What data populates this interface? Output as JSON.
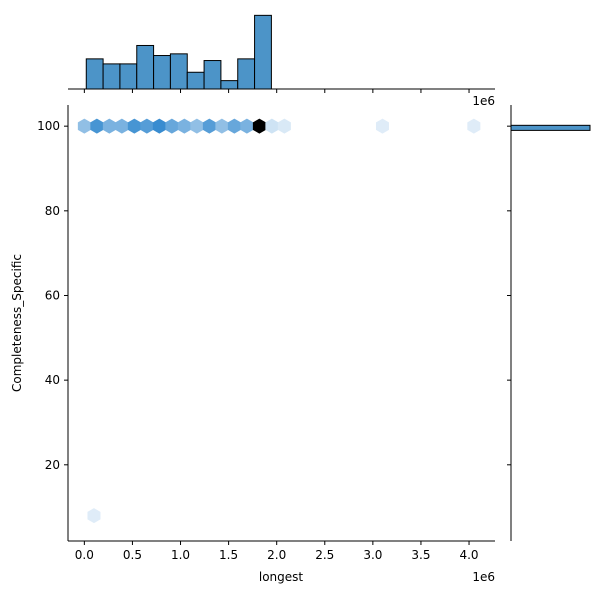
{
  "chart_data": {
    "type": "hexbin_joint",
    "xlabel": "longest",
    "ylabel": "Completeness_Specific",
    "x_offset_label": "1e6",
    "top_offset_label": "1e6",
    "xlim": [
      -170000,
      4270000
    ],
    "ylim": [
      2,
      105
    ],
    "x_ticks": [
      0,
      500000,
      1000000,
      1500000,
      2000000,
      2500000,
      3000000,
      3500000,
      4000000
    ],
    "x_tick_labels": [
      "0.0",
      "0.5",
      "1.0",
      "1.5",
      "2.0",
      "2.5",
      "3.0",
      "3.5",
      "4.0"
    ],
    "y_ticks": [
      20,
      40,
      60,
      80,
      100
    ],
    "y_tick_labels": [
      "20",
      "40",
      "60",
      "80",
      "100"
    ],
    "hexbins": [
      {
        "x": 0,
        "y": 100,
        "count": 2
      },
      {
        "x": 130000,
        "y": 100,
        "count": 6
      },
      {
        "x": 260000,
        "y": 100,
        "count": 3
      },
      {
        "x": 390000,
        "y": 100,
        "count": 3
      },
      {
        "x": 520000,
        "y": 100,
        "count": 6
      },
      {
        "x": 650000,
        "y": 100,
        "count": 5
      },
      {
        "x": 780000,
        "y": 100,
        "count": 7
      },
      {
        "x": 910000,
        "y": 100,
        "count": 4
      },
      {
        "x": 1040000,
        "y": 100,
        "count": 3
      },
      {
        "x": 1170000,
        "y": 100,
        "count": 2
      },
      {
        "x": 1300000,
        "y": 100,
        "count": 5
      },
      {
        "x": 1430000,
        "y": 100,
        "count": 2
      },
      {
        "x": 1560000,
        "y": 100,
        "count": 4
      },
      {
        "x": 1690000,
        "y": 100,
        "count": 3
      },
      {
        "x": 1820000,
        "y": 100,
        "count": 14
      },
      {
        "x": 1950000,
        "y": 100,
        "count": 0.3
      },
      {
        "x": 2080000,
        "y": 100,
        "count": 0.15
      },
      {
        "x": 3100000,
        "y": 100,
        "count": 0.1
      },
      {
        "x": 4050000,
        "y": 100,
        "count": 0.1
      },
      {
        "x": 100000,
        "y": 8,
        "count": 0.1
      }
    ],
    "color_max_count": 14,
    "marginal_x_hist": {
      "bin_edges": [
        20000,
        195000,
        370000,
        545000,
        720000,
        895000,
        1070000,
        1245000,
        1420000,
        1595000,
        1770000,
        1945000,
        2120000,
        2295000,
        2470000,
        2645000,
        2820000,
        2995000,
        3170000,
        3345000,
        3520000,
        3695000,
        3870000,
        4045000
      ],
      "counts": [
        9,
        7.5,
        7.5,
        13,
        10,
        10.5,
        5,
        8.5,
        2.5,
        9,
        22,
        0,
        0,
        0,
        0,
        0,
        0,
        0,
        0,
        0,
        0,
        0,
        0
      ],
      "ymax": 23
    },
    "marginal_y_hist": {
      "bin_range": [
        99,
        100.2
      ],
      "count": 1
    },
    "bar_color": "#4c94c8",
    "hex_color_high": "#1a6aa8",
    "hex_color_max": "#000000"
  }
}
